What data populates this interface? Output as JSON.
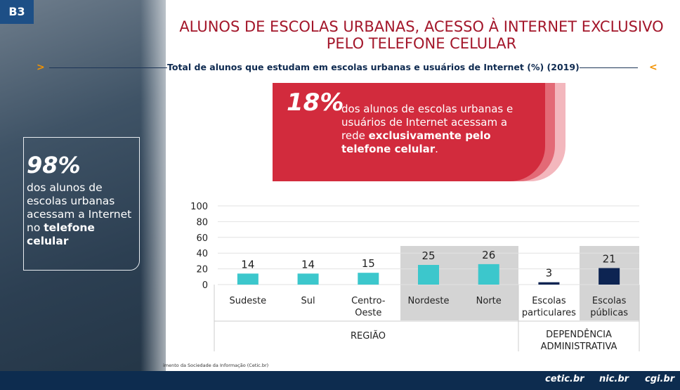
{
  "slide": {
    "badge": "B3",
    "callout_main": {
      "big": "18%",
      "text": "dos alunos de escolas urbanas e usuários de Internet acessam a rede",
      "bold": "exclusivamente pelo telefone celular",
      "end": "."
    },
    "callout_side": {
      "big": "98%",
      "text": "dos alunos de escolas urbanas acessam a Internet no",
      "bold": "telefone celular"
    },
    "source": "imento da Sociedade da Informação (Cetic.br)",
    "logos": [
      "cetic.br",
      "nic.br",
      "cgi.br"
    ]
  },
  "chart_data": {
    "type": "bar",
    "title": "ALUNOS DE ESCOLAS URBANAS, ACESSO À INTERNET EXCLUSIVO PELO TELEFONE CELULAR",
    "subtitle": "Total de alunos que estudam em escolas urbanas e usuários de Internet (%) (2019)",
    "categories": [
      "Sudeste",
      "Sul",
      "Centro-Oeste",
      "Nordeste",
      "Norte",
      "Escolas particulares",
      "Escolas públicas"
    ],
    "values": [
      14,
      14,
      15,
      25,
      26,
      3,
      21
    ],
    "colors": [
      "#3cc7cc",
      "#3cc7cc",
      "#3cc7cc",
      "#3cc7cc",
      "#3cc7cc",
      "#0d2452",
      "#0d2452"
    ],
    "groups": [
      "REGIÃO",
      "DEPENDÊNCIA ADMINISTRATIVA"
    ],
    "ylim": [
      0,
      100
    ],
    "yticks": [
      0,
      20,
      40,
      60,
      80,
      100
    ],
    "grid": true
  }
}
